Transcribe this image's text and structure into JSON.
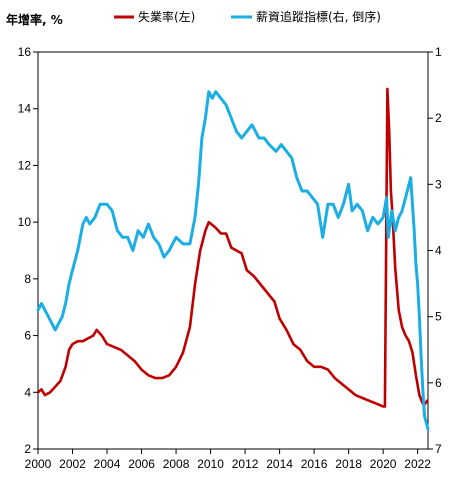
{
  "chart_data": {
    "type": "line",
    "ylabel_left": "年增率, %",
    "x_ticks": [
      "2000",
      "2002",
      "2004",
      "2006",
      "2008",
      "2010",
      "2012",
      "2014",
      "2016",
      "2018",
      "2020",
      "2022"
    ],
    "xlim": [
      2000,
      2022.6
    ],
    "y_left": {
      "min": 2,
      "max": 16,
      "ticks": [
        "2",
        "4",
        "6",
        "8",
        "10",
        "12",
        "14",
        "16"
      ]
    },
    "y_right": {
      "min": 1,
      "max": 7,
      "inverted": true,
      "ticks": [
        "1",
        "2",
        "3",
        "4",
        "5",
        "6",
        "7"
      ]
    },
    "grid": false,
    "legend_position": "top",
    "series": [
      {
        "name": "失業率(左)",
        "axis": "left",
        "color": "#c00000",
        "points": [
          [
            2000.0,
            4.0
          ],
          [
            2000.2,
            4.1
          ],
          [
            2000.4,
            3.9
          ],
          [
            2000.7,
            4.0
          ],
          [
            2001.0,
            4.2
          ],
          [
            2001.3,
            4.4
          ],
          [
            2001.6,
            4.9
          ],
          [
            2001.8,
            5.5
          ],
          [
            2002.0,
            5.7
          ],
          [
            2002.3,
            5.8
          ],
          [
            2002.6,
            5.8
          ],
          [
            2002.9,
            5.9
          ],
          [
            2003.2,
            6.0
          ],
          [
            2003.4,
            6.2
          ],
          [
            2003.7,
            6.0
          ],
          [
            2004.0,
            5.7
          ],
          [
            2004.4,
            5.6
          ],
          [
            2004.8,
            5.5
          ],
          [
            2005.2,
            5.3
          ],
          [
            2005.6,
            5.1
          ],
          [
            2006.0,
            4.8
          ],
          [
            2006.4,
            4.6
          ],
          [
            2006.8,
            4.5
          ],
          [
            2007.2,
            4.5
          ],
          [
            2007.6,
            4.6
          ],
          [
            2008.0,
            4.9
          ],
          [
            2008.4,
            5.4
          ],
          [
            2008.8,
            6.3
          ],
          [
            2009.1,
            7.8
          ],
          [
            2009.4,
            9.0
          ],
          [
            2009.7,
            9.7
          ],
          [
            2009.9,
            10.0
          ],
          [
            2010.3,
            9.8
          ],
          [
            2010.6,
            9.6
          ],
          [
            2010.9,
            9.6
          ],
          [
            2011.2,
            9.1
          ],
          [
            2011.5,
            9.0
          ],
          [
            2011.8,
            8.9
          ],
          [
            2012.1,
            8.3
          ],
          [
            2012.5,
            8.1
          ],
          [
            2012.9,
            7.8
          ],
          [
            2013.3,
            7.5
          ],
          [
            2013.7,
            7.2
          ],
          [
            2014.0,
            6.6
          ],
          [
            2014.4,
            6.2
          ],
          [
            2014.8,
            5.7
          ],
          [
            2015.2,
            5.5
          ],
          [
            2015.6,
            5.1
          ],
          [
            2016.0,
            4.9
          ],
          [
            2016.4,
            4.9
          ],
          [
            2016.8,
            4.8
          ],
          [
            2017.2,
            4.5
          ],
          [
            2017.6,
            4.3
          ],
          [
            2018.0,
            4.1
          ],
          [
            2018.4,
            3.9
          ],
          [
            2018.8,
            3.8
          ],
          [
            2019.2,
            3.7
          ],
          [
            2019.6,
            3.6
          ],
          [
            2020.0,
            3.5
          ],
          [
            2020.1,
            3.5
          ],
          [
            2020.25,
            14.7
          ],
          [
            2020.35,
            13.2
          ],
          [
            2020.45,
            11.1
          ],
          [
            2020.55,
            10.2
          ],
          [
            2020.7,
            8.4
          ],
          [
            2020.9,
            6.9
          ],
          [
            2021.1,
            6.3
          ],
          [
            2021.3,
            6.0
          ],
          [
            2021.5,
            5.8
          ],
          [
            2021.7,
            5.4
          ],
          [
            2021.9,
            4.6
          ],
          [
            2022.1,
            3.9
          ],
          [
            2022.3,
            3.6
          ],
          [
            2022.45,
            3.6
          ],
          [
            2022.55,
            3.7
          ]
        ]
      },
      {
        "name": "薪資追蹤指標(右, 倒序)",
        "axis": "right",
        "color": "#1aaee5",
        "points": [
          [
            2000.0,
            4.9
          ],
          [
            2000.2,
            4.8
          ],
          [
            2000.4,
            4.9
          ],
          [
            2000.6,
            5.0
          ],
          [
            2000.8,
            5.1
          ],
          [
            2001.0,
            5.2
          ],
          [
            2001.2,
            5.1
          ],
          [
            2001.4,
            5.0
          ],
          [
            2001.6,
            4.8
          ],
          [
            2001.8,
            4.5
          ],
          [
            2002.0,
            4.3
          ],
          [
            2002.3,
            4.0
          ],
          [
            2002.6,
            3.6
          ],
          [
            2002.8,
            3.5
          ],
          [
            2003.0,
            3.6
          ],
          [
            2003.3,
            3.5
          ],
          [
            2003.6,
            3.3
          ],
          [
            2004.0,
            3.3
          ],
          [
            2004.3,
            3.4
          ],
          [
            2004.6,
            3.7
          ],
          [
            2004.9,
            3.8
          ],
          [
            2005.2,
            3.8
          ],
          [
            2005.5,
            4.0
          ],
          [
            2005.8,
            3.7
          ],
          [
            2006.1,
            3.8
          ],
          [
            2006.4,
            3.6
          ],
          [
            2006.7,
            3.8
          ],
          [
            2007.0,
            3.9
          ],
          [
            2007.3,
            4.1
          ],
          [
            2007.6,
            4.0
          ],
          [
            2008.0,
            3.8
          ],
          [
            2008.4,
            3.9
          ],
          [
            2008.8,
            3.9
          ],
          [
            2009.1,
            3.5
          ],
          [
            2009.3,
            3.0
          ],
          [
            2009.5,
            2.3
          ],
          [
            2009.7,
            2.0
          ],
          [
            2009.9,
            1.6
          ],
          [
            2010.1,
            1.7
          ],
          [
            2010.3,
            1.6
          ],
          [
            2010.6,
            1.7
          ],
          [
            2010.9,
            1.8
          ],
          [
            2011.2,
            2.0
          ],
          [
            2011.5,
            2.2
          ],
          [
            2011.8,
            2.3
          ],
          [
            2012.1,
            2.2
          ],
          [
            2012.4,
            2.1
          ],
          [
            2012.8,
            2.3
          ],
          [
            2013.1,
            2.3
          ],
          [
            2013.4,
            2.4
          ],
          [
            2013.8,
            2.5
          ],
          [
            2014.1,
            2.4
          ],
          [
            2014.4,
            2.5
          ],
          [
            2014.7,
            2.6
          ],
          [
            2015.0,
            2.9
          ],
          [
            2015.3,
            3.1
          ],
          [
            2015.6,
            3.1
          ],
          [
            2015.9,
            3.2
          ],
          [
            2016.2,
            3.3
          ],
          [
            2016.5,
            3.8
          ],
          [
            2016.8,
            3.3
          ],
          [
            2017.1,
            3.3
          ],
          [
            2017.4,
            3.5
          ],
          [
            2017.7,
            3.3
          ],
          [
            2018.0,
            3.0
          ],
          [
            2018.2,
            3.4
          ],
          [
            2018.5,
            3.3
          ],
          [
            2018.8,
            3.4
          ],
          [
            2019.1,
            3.7
          ],
          [
            2019.4,
            3.5
          ],
          [
            2019.7,
            3.6
          ],
          [
            2020.0,
            3.5
          ],
          [
            2020.2,
            3.2
          ],
          [
            2020.3,
            3.8
          ],
          [
            2020.5,
            3.4
          ],
          [
            2020.7,
            3.7
          ],
          [
            2020.9,
            3.5
          ],
          [
            2021.1,
            3.4
          ],
          [
            2021.4,
            3.1
          ],
          [
            2021.6,
            2.9
          ],
          [
            2021.8,
            3.7
          ],
          [
            2021.9,
            4.2
          ],
          [
            2022.0,
            4.5
          ],
          [
            2022.1,
            5.0
          ],
          [
            2022.2,
            5.6
          ],
          [
            2022.3,
            6.1
          ],
          [
            2022.4,
            6.5
          ],
          [
            2022.6,
            6.7
          ]
        ]
      }
    ]
  }
}
